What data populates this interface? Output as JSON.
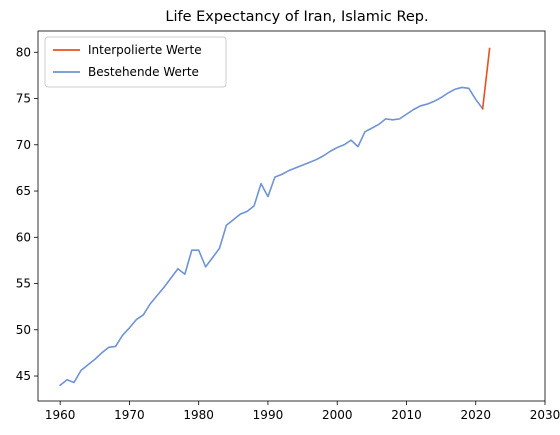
{
  "chart_data": {
    "type": "line",
    "title": "Life Expectancy of Iran, Islamic Rep.",
    "xlabel": "",
    "ylabel": "",
    "xlim": [
      1956.8,
      2030
    ],
    "ylim": [
      42.3,
      82.3
    ],
    "xticks": [
      1960,
      1970,
      1980,
      1990,
      2000,
      2010,
      2020,
      2030
    ],
    "yticks": [
      45,
      50,
      55,
      60,
      65,
      70,
      75,
      80
    ],
    "grid": false,
    "legend_position": "top-left",
    "series": [
      {
        "name": "Interpolierte Werte",
        "color": "#e8501f",
        "x": [
          2021,
          2022
        ],
        "y": [
          73.9,
          80.4
        ]
      },
      {
        "name": "Bestehende Werte",
        "color": "#6f93d6",
        "x": [
          1960,
          1961,
          1962,
          1963,
          1964,
          1965,
          1966,
          1967,
          1968,
          1969,
          1970,
          1971,
          1972,
          1973,
          1974,
          1975,
          1976,
          1977,
          1978,
          1979,
          1980,
          1981,
          1982,
          1983,
          1984,
          1985,
          1986,
          1987,
          1988,
          1989,
          1990,
          1991,
          1992,
          1993,
          1994,
          1995,
          1996,
          1997,
          1998,
          1999,
          2000,
          2001,
          2002,
          2003,
          2004,
          2005,
          2006,
          2007,
          2008,
          2009,
          2010,
          2011,
          2012,
          2013,
          2014,
          2015,
          2016,
          2017,
          2018,
          2019,
          2020,
          2021
        ],
        "y": [
          44.0,
          44.6,
          44.3,
          45.6,
          46.2,
          46.8,
          47.5,
          48.1,
          48.2,
          49.4,
          50.2,
          51.1,
          51.6,
          52.8,
          53.7,
          54.6,
          55.6,
          56.6,
          56.0,
          58.6,
          58.6,
          56.8,
          57.8,
          58.8,
          61.3,
          61.9,
          62.5,
          62.8,
          63.4,
          65.8,
          64.4,
          66.5,
          66.8,
          67.2,
          67.5,
          67.8,
          68.1,
          68.4,
          68.8,
          69.3,
          69.7,
          70.0,
          70.5,
          69.8,
          71.4,
          71.8,
          72.2,
          72.8,
          72.7,
          72.8,
          73.3,
          73.8,
          74.2,
          74.4,
          74.7,
          75.1,
          75.6,
          76.0,
          76.2,
          76.1,
          74.9,
          73.9
        ]
      }
    ]
  }
}
